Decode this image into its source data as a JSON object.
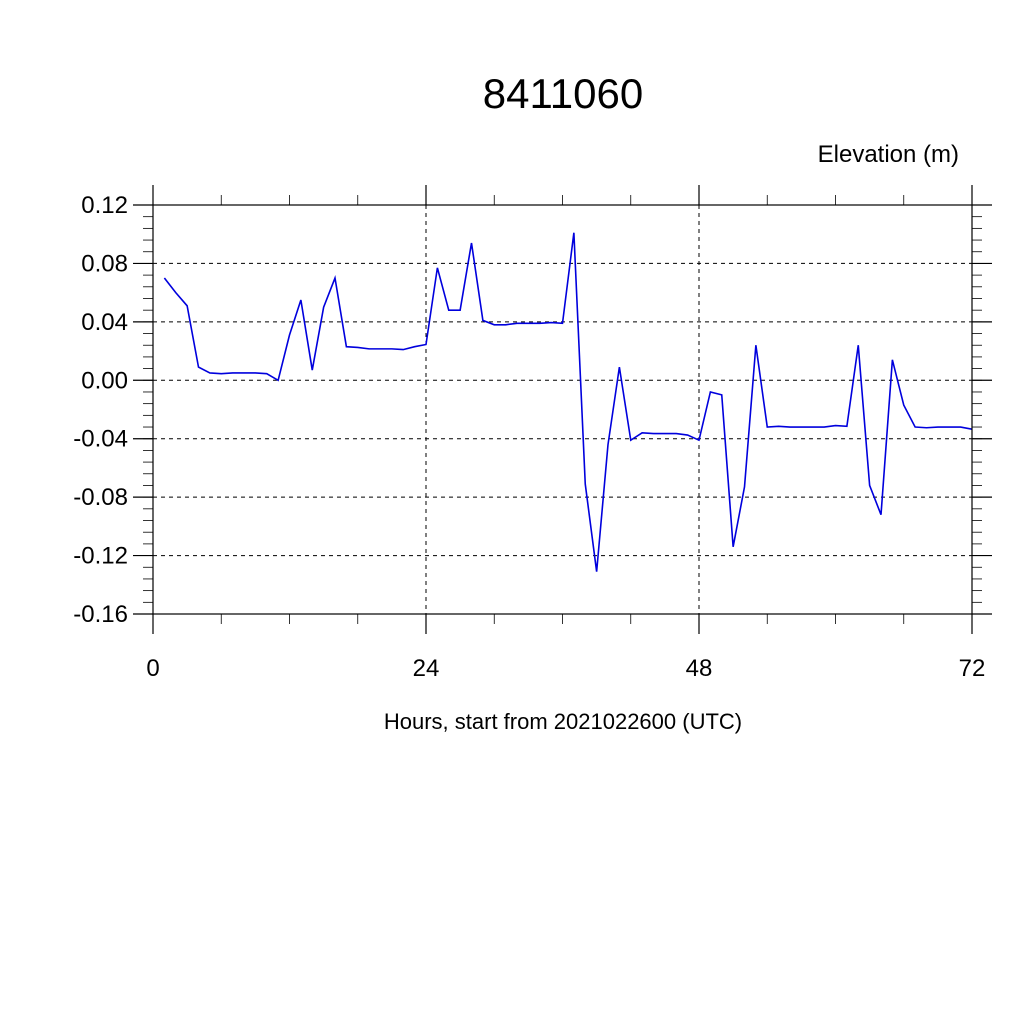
{
  "chart_data": {
    "type": "line",
    "title": "8411060",
    "right_label": "Elevation (m)",
    "xlabel": "Hours, start from 2021022600 (UTC)",
    "xlim": [
      0,
      72
    ],
    "ylim": [
      -0.16,
      0.12
    ],
    "x_ticks": [
      0,
      24,
      48,
      72
    ],
    "x_tick_labels": [
      "0",
      "24",
      "48",
      "72"
    ],
    "y_ticks": [
      0.12,
      0.08,
      0.04,
      0.0,
      -0.04,
      -0.08,
      -0.12,
      -0.16
    ],
    "y_tick_labels": [
      "0.12",
      "0.08",
      "0.04",
      "0.00",
      "-0.04",
      "-0.08",
      "-0.12",
      "-0.16"
    ],
    "grid": "dashed",
    "line_color": "#0000dd",
    "series": [
      {
        "x": [
          1,
          2,
          3,
          4,
          5,
          6,
          7,
          8,
          9,
          10,
          11,
          12,
          13,
          14,
          15,
          16,
          17,
          18,
          19,
          20,
          21,
          22,
          23,
          24,
          25,
          26,
          27,
          28,
          29,
          30,
          31,
          32,
          33,
          34,
          35,
          36,
          37,
          38,
          39,
          40,
          41,
          42,
          43,
          44,
          45,
          46,
          47,
          48,
          49,
          50,
          51,
          52,
          53,
          54,
          55,
          56,
          57,
          58,
          59,
          60,
          61,
          62,
          63,
          64,
          65,
          66,
          67,
          68,
          69,
          70,
          71,
          72
        ],
        "values": [
          0.07,
          0.06,
          0.051,
          0.009,
          0.005,
          0.0045,
          0.005,
          0.005,
          0.005,
          0.0045,
          0.0,
          0.031,
          0.055,
          0.007,
          0.05,
          0.07,
          0.023,
          0.0225,
          0.0215,
          0.0215,
          0.0215,
          0.021,
          0.023,
          0.0245,
          0.077,
          0.048,
          0.048,
          0.094,
          0.041,
          0.038,
          0.038,
          0.039,
          0.039,
          0.039,
          0.0395,
          0.039,
          0.101,
          -0.071,
          -0.131,
          -0.044,
          0.009,
          -0.041,
          -0.036,
          -0.0365,
          -0.0365,
          -0.0365,
          -0.0375,
          -0.041,
          -0.008,
          -0.01,
          -0.114,
          -0.073,
          0.024,
          -0.032,
          -0.0315,
          -0.032,
          -0.032,
          -0.032,
          -0.032,
          -0.031,
          -0.0315,
          0.024,
          -0.072,
          -0.092,
          0.014,
          -0.017,
          -0.032,
          -0.0325,
          -0.032,
          -0.032,
          -0.032,
          -0.0335
        ]
      }
    ]
  }
}
